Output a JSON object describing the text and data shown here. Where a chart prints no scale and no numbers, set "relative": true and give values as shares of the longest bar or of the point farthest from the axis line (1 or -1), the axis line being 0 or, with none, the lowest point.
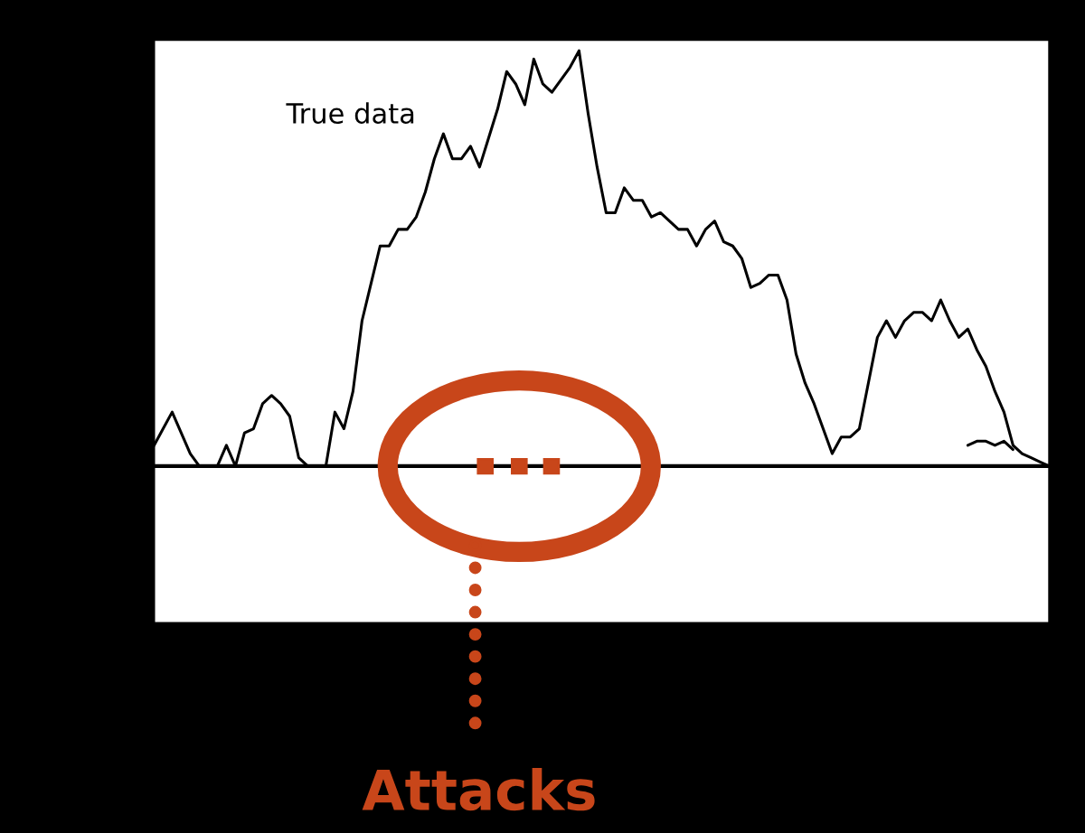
{
  "chart_data": {
    "type": "line",
    "relative": true,
    "annotations": [
      "Attacks"
    ],
    "categories": [
      null,
      null,
      null,
      null,
      null,
      null,
      null,
      null,
      null,
      null,
      null,
      null,
      null,
      null,
      null,
      null,
      null,
      null,
      null,
      null,
      null,
      null,
      null,
      null,
      null,
      null,
      null,
      null,
      null,
      null,
      null,
      null,
      null,
      null,
      null,
      null,
      null,
      null,
      null,
      null,
      null,
      null,
      null,
      null,
      null,
      null,
      null,
      null,
      null,
      null,
      null,
      null,
      null,
      null,
      null,
      null,
      null,
      null,
      null,
      null,
      null,
      null,
      null,
      null,
      null,
      null,
      null,
      null,
      null,
      null,
      null,
      null,
      null,
      null,
      null,
      null,
      null,
      null,
      null,
      null,
      null,
      null,
      null,
      null,
      null,
      null,
      null,
      null,
      null,
      null,
      null,
      null,
      null,
      null,
      null,
      null,
      null,
      null,
      null,
      null
    ],
    "series": [
      {
        "name": "True data",
        "color": "#000000",
        "values": [
          0.05,
          0.09,
          0.13,
          0.08,
          0.03,
          0,
          0,
          0,
          0.05,
          0,
          0.08,
          0.09,
          0.15,
          0.17,
          0.15,
          0.12,
          0.02,
          0,
          0,
          0,
          0.13,
          0.09,
          0.18,
          0.35,
          0.44,
          0.53,
          0.53,
          0.57,
          0.57,
          0.6,
          0.66,
          0.74,
          0.8,
          0.74,
          0.74,
          0.77,
          0.72,
          0.79,
          0.86,
          0.95,
          0.92,
          0.87,
          0.98,
          0.92,
          0.9,
          0.93,
          0.96,
          1.0,
          0.85,
          0.72,
          0.61,
          0.61,
          0.67,
          0.64,
          0.64,
          0.6,
          0.61,
          0.59,
          0.57,
          0.57,
          0.53,
          0.57,
          0.59,
          0.54,
          0.53,
          0.5,
          0.43,
          0.44,
          0.46,
          0.46,
          0.4,
          0.27,
          0.2,
          0.15,
          0.09,
          0.03,
          0.07,
          0.07,
          0.09,
          0.2,
          0.31,
          0.35,
          0.31,
          0.35,
          0.37,
          0.37,
          0.35,
          0.4,
          0.35,
          0.31,
          0.33,
          0.28,
          0.24,
          0.18,
          0.13,
          0.05,
          0.03,
          0.02,
          0.01,
          0
        ]
      },
      {
        "color": "#000000",
        "values": [
          null,
          null,
          null,
          null,
          null,
          null,
          null,
          null,
          null,
          null,
          null,
          null,
          null,
          null,
          null,
          null,
          null,
          null,
          null,
          null,
          null,
          null,
          null,
          null,
          null,
          null,
          null,
          null,
          null,
          null,
          null,
          null,
          null,
          null,
          null,
          null,
          null,
          null,
          null,
          null,
          null,
          null,
          null,
          null,
          null,
          null,
          null,
          null,
          null,
          null,
          null,
          null,
          null,
          null,
          null,
          null,
          null,
          null,
          null,
          null,
          null,
          null,
          null,
          null,
          null,
          null,
          null,
          null,
          null,
          null,
          null,
          null,
          null,
          null,
          null,
          null,
          null,
          null,
          null,
          null,
          null,
          null,
          null,
          null,
          null,
          null,
          null,
          null,
          null,
          null,
          0.05,
          0.06,
          0.06,
          0.05,
          0.06,
          0.04,
          null,
          null,
          null,
          null
        ]
      }
    ]
  }
}
